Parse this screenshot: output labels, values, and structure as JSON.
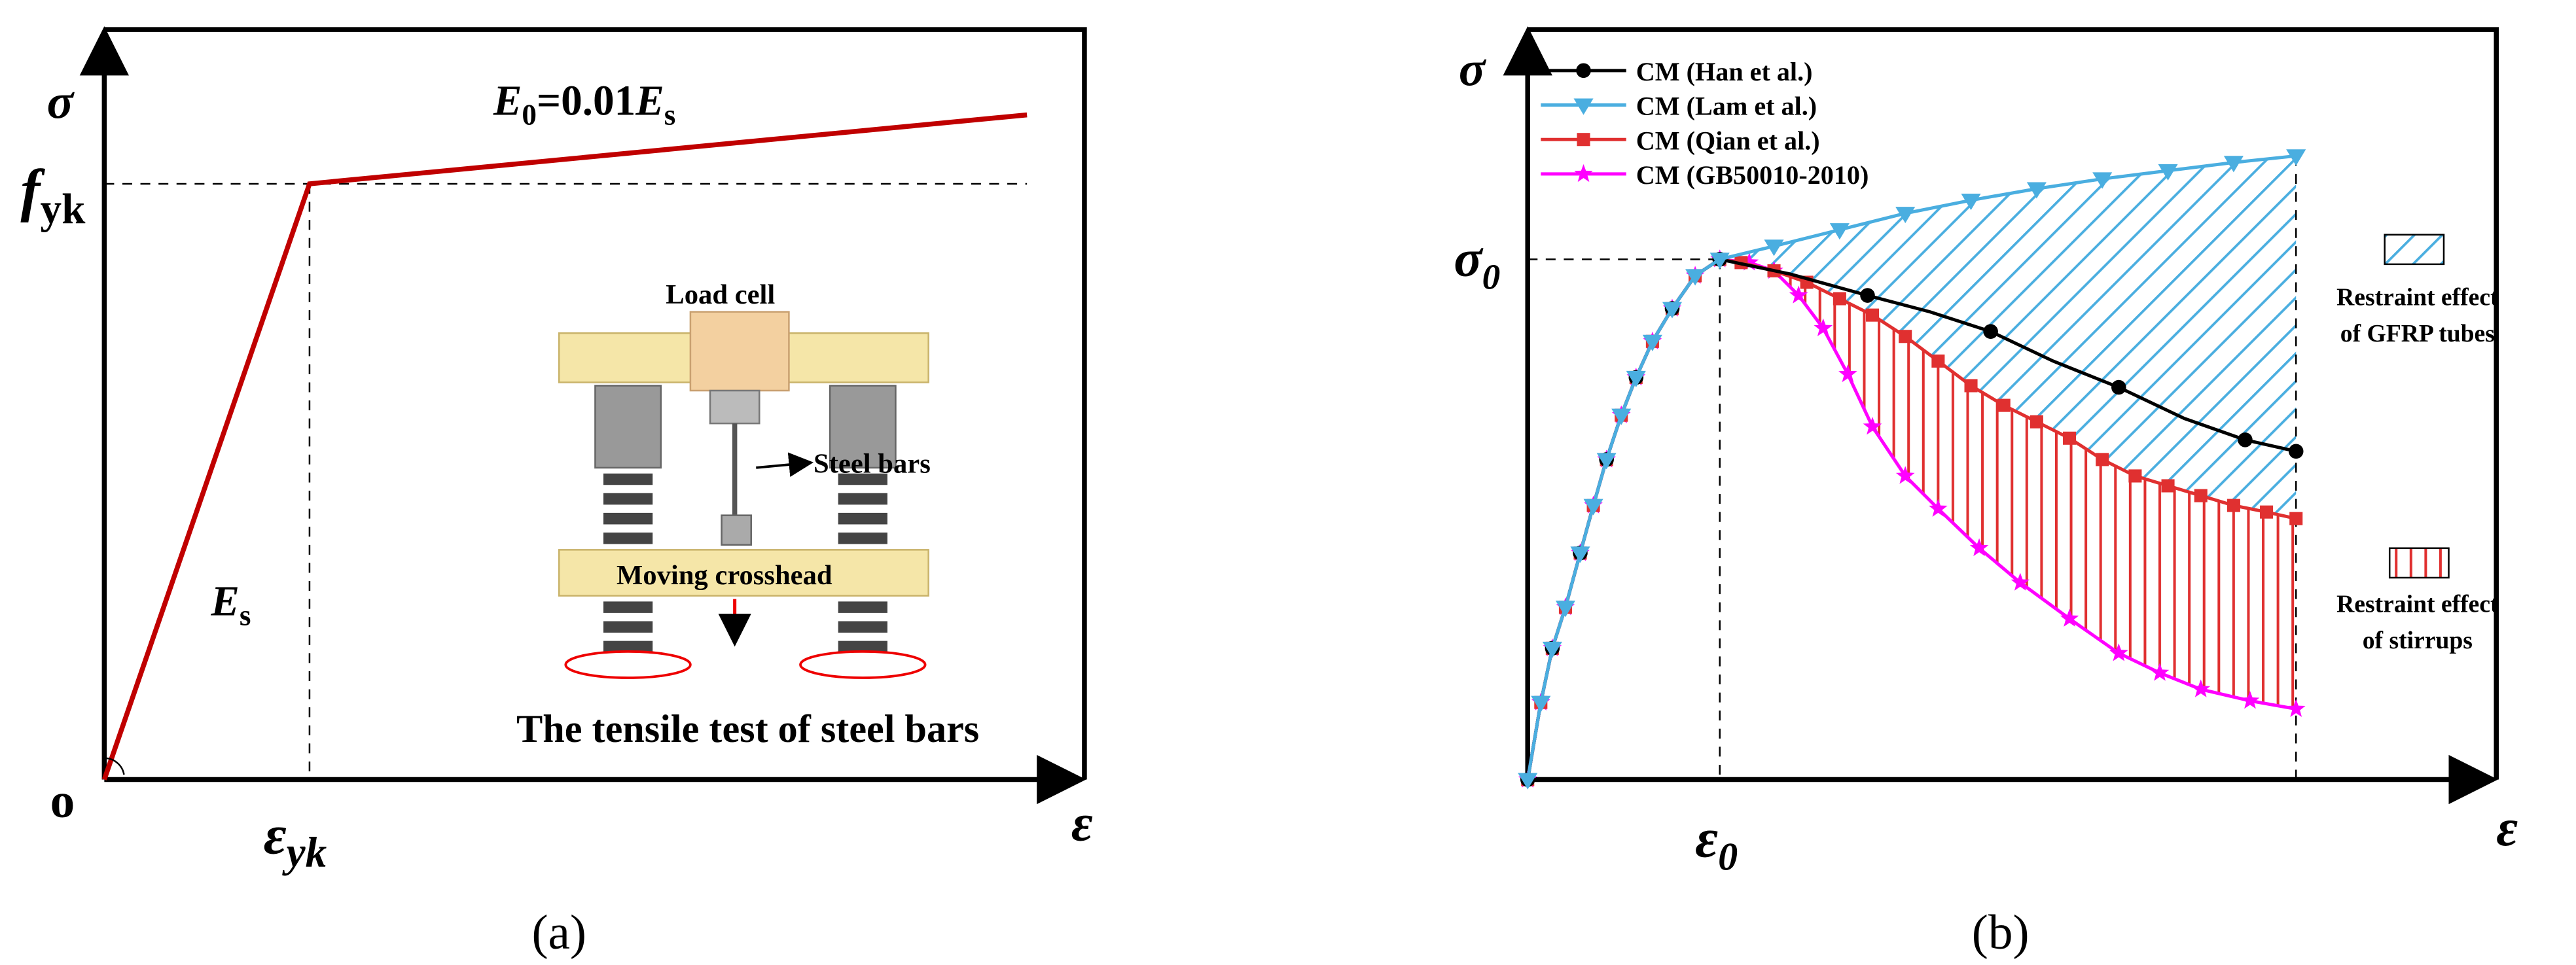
{
  "panel_a": {
    "y_axis": "σ",
    "fyk": {
      "main": "f",
      "sub": "yk"
    },
    "origin": "o",
    "eyk": {
      "main": "ε",
      "sub": "yk"
    },
    "x_axis": "ε",
    "slope_1": {
      "main": "E",
      "sub": "s"
    },
    "slope_2": [
      "E",
      "0",
      "=0.01",
      "E",
      "s"
    ],
    "inset": {
      "load_cell": "Load cell",
      "steel_bars": "Steel bars",
      "crosshead": "Moving crosshead",
      "caption": "The tensile test of steel bars"
    },
    "caption": "(a)"
  },
  "panel_b": {
    "y_axis": "σ",
    "sigma0": {
      "main": "σ",
      "sub": "0"
    },
    "eps0": {
      "main": "ε",
      "sub": "0"
    },
    "x_axis": "ε",
    "legend": [
      "CM (Han et al.)",
      "CM (Lam et al.)",
      "CM (Qian et al.)",
      "CM (GB50010-2010)"
    ],
    "region_1": [
      "Restraint effect",
      "of GFRP tubes"
    ],
    "region_2": [
      "Restraint effect",
      "of stirrups"
    ],
    "caption": "(b)"
  }
}
